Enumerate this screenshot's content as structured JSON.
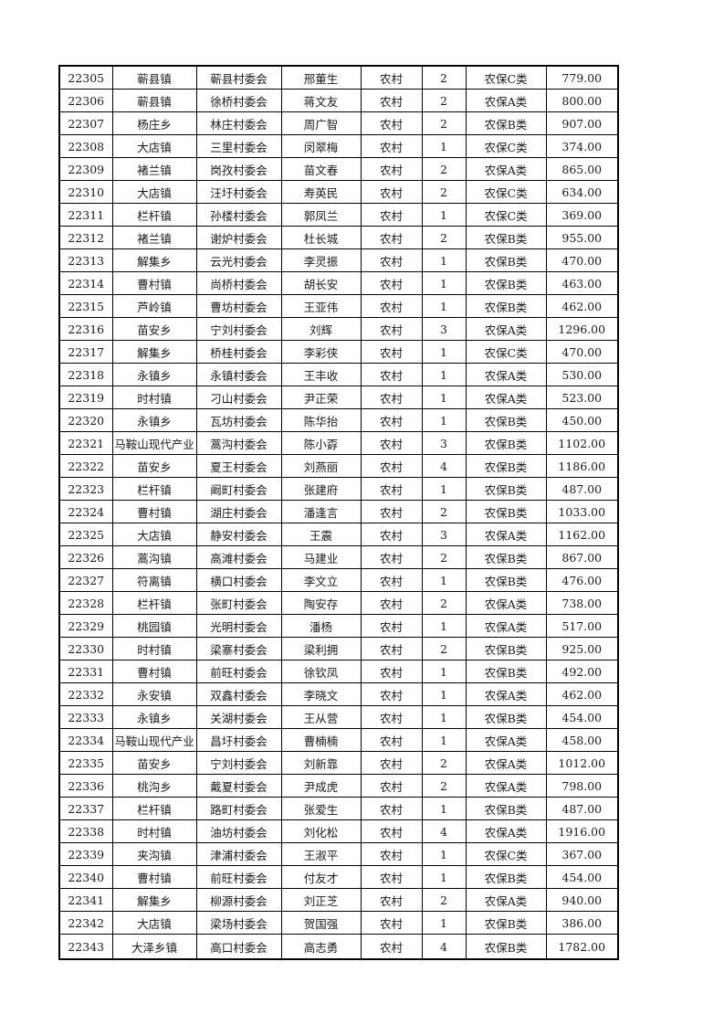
{
  "page": {
    "background": "#ffffff"
  },
  "colors": {
    "border": "#000000",
    "text": "#1a1a1a",
    "background": "#ffffff"
  },
  "table": {
    "name": "rural-pension-roster",
    "columns": [
      "id",
      "town",
      "village_committee",
      "person_name",
      "residence_type",
      "person_count",
      "insurance_class",
      "amount"
    ],
    "rows": [
      [
        "22305",
        "蕲县镇",
        "蕲县村委会",
        "邢董生",
        "农村",
        "2",
        "农保C类",
        "779.00"
      ],
      [
        "22306",
        "蕲县镇",
        "徐桥村委会",
        "蒋文友",
        "农村",
        "2",
        "农保A类",
        "800.00"
      ],
      [
        "22307",
        "杨庄乡",
        "林庄村委会",
        "周广智",
        "农村",
        "2",
        "农保B类",
        "907.00"
      ],
      [
        "22308",
        "大店镇",
        "三里村委会",
        "闵翠梅",
        "农村",
        "1",
        "农保C类",
        "374.00"
      ],
      [
        "22309",
        "褚兰镇",
        "岗孜村委会",
        "苗文春",
        "农村",
        "2",
        "农保A类",
        "865.00"
      ],
      [
        "22310",
        "大店镇",
        "汪圩村委会",
        "寿英民",
        "农村",
        "2",
        "农保C类",
        "634.00"
      ],
      [
        "22311",
        "栏杆镇",
        "孙楼村委会",
        "郭凤兰",
        "农村",
        "1",
        "农保C类",
        "369.00"
      ],
      [
        "22312",
        "褚兰镇",
        "谢炉村委会",
        "杜长城",
        "农村",
        "2",
        "农保B类",
        "955.00"
      ],
      [
        "22313",
        "解集乡",
        "云光村委会",
        "李灵振",
        "农村",
        "1",
        "农保B类",
        "470.00"
      ],
      [
        "22314",
        "曹村镇",
        "尚桥村委会",
        "胡长安",
        "农村",
        "1",
        "农保B类",
        "463.00"
      ],
      [
        "22315",
        "芦岭镇",
        "曹坊村委会",
        "王亚伟",
        "农村",
        "1",
        "农保B类",
        "462.00"
      ],
      [
        "22316",
        "苗安乡",
        "宁刘村委会",
        "刘辉",
        "农村",
        "3",
        "农保A类",
        "1296.00"
      ],
      [
        "22317",
        "解集乡",
        "桥桂村委会",
        "李彩侠",
        "农村",
        "1",
        "农保C类",
        "470.00"
      ],
      [
        "22318",
        "永镇乡",
        "永镇村委会",
        "王丰收",
        "农村",
        "1",
        "农保A类",
        "530.00"
      ],
      [
        "22319",
        "时村镇",
        "刁山村委会",
        "尹正荣",
        "农村",
        "1",
        "农保A类",
        "523.00"
      ],
      [
        "22320",
        "永镇乡",
        "瓦坊村委会",
        "陈华抬",
        "农村",
        "1",
        "农保B类",
        "450.00"
      ],
      [
        "22321",
        "马鞍山现代产业",
        "蒿沟村委会",
        "陈小孬",
        "农村",
        "3",
        "农保B类",
        "1102.00"
      ],
      [
        "22322",
        "苗安乡",
        "夏王村委会",
        "刘燕丽",
        "农村",
        "4",
        "农保B类",
        "1186.00"
      ],
      [
        "22323",
        "栏杆镇",
        "阚町村委会",
        "张建府",
        "农村",
        "1",
        "农保B类",
        "487.00"
      ],
      [
        "22324",
        "曹村镇",
        "湖庄村委会",
        "潘逢言",
        "农村",
        "2",
        "农保B类",
        "1033.00"
      ],
      [
        "22325",
        "大店镇",
        "静安村委会",
        "王震",
        "农村",
        "3",
        "农保A类",
        "1162.00"
      ],
      [
        "22326",
        "蒿沟镇",
        "高滩村委会",
        "马建业",
        "农村",
        "2",
        "农保B类",
        "867.00"
      ],
      [
        "22327",
        "符离镇",
        "横口村委会",
        "李文立",
        "农村",
        "1",
        "农保B类",
        "476.00"
      ],
      [
        "22328",
        "栏杆镇",
        "张町村委会",
        "陶安存",
        "农村",
        "2",
        "农保A类",
        "738.00"
      ],
      [
        "22329",
        "桃园镇",
        "光明村委会",
        "潘杨",
        "农村",
        "1",
        "农保A类",
        "517.00"
      ],
      [
        "22330",
        "时村镇",
        "梁寨村委会",
        "梁利拥",
        "农村",
        "2",
        "农保B类",
        "925.00"
      ],
      [
        "22331",
        "曹村镇",
        "前旺村委会",
        "徐钦凤",
        "农村",
        "1",
        "农保B类",
        "492.00"
      ],
      [
        "22332",
        "永安镇",
        "双鑫村委会",
        "李晓文",
        "农村",
        "1",
        "农保A类",
        "462.00"
      ],
      [
        "22333",
        "永镇乡",
        "关湖村委会",
        "王从营",
        "农村",
        "1",
        "农保B类",
        "454.00"
      ],
      [
        "22334",
        "马鞍山现代产业",
        "昌圩村委会",
        "曹楠楠",
        "农村",
        "1",
        "农保A类",
        "458.00"
      ],
      [
        "22335",
        "苗安乡",
        "宁刘村委会",
        "刘新靠",
        "农村",
        "2",
        "农保A类",
        "1012.00"
      ],
      [
        "22336",
        "桃沟乡",
        "戴夏村委会",
        "尹成虎",
        "农村",
        "2",
        "农保A类",
        "798.00"
      ],
      [
        "22337",
        "栏杆镇",
        "路町村委会",
        "张爱生",
        "农村",
        "1",
        "农保B类",
        "487.00"
      ],
      [
        "22338",
        "时村镇",
        "油坊村委会",
        "刘化松",
        "农村",
        "4",
        "农保A类",
        "1916.00"
      ],
      [
        "22339",
        "夹沟镇",
        "津浦村委会",
        "王淑平",
        "农村",
        "1",
        "农保C类",
        "367.00"
      ],
      [
        "22340",
        "曹村镇",
        "前旺村委会",
        "付友才",
        "农村",
        "1",
        "农保B类",
        "454.00"
      ],
      [
        "22341",
        "解集乡",
        "柳源村委会",
        "刘正芝",
        "农村",
        "2",
        "农保A类",
        "940.00"
      ],
      [
        "22342",
        "大店镇",
        "梁场村委会",
        "贺国强",
        "农村",
        "1",
        "农保B类",
        "386.00"
      ],
      [
        "22343",
        "大泽乡镇",
        "高口村委会",
        "高志勇",
        "农村",
        "4",
        "农保B类",
        "1782.00"
      ]
    ]
  }
}
